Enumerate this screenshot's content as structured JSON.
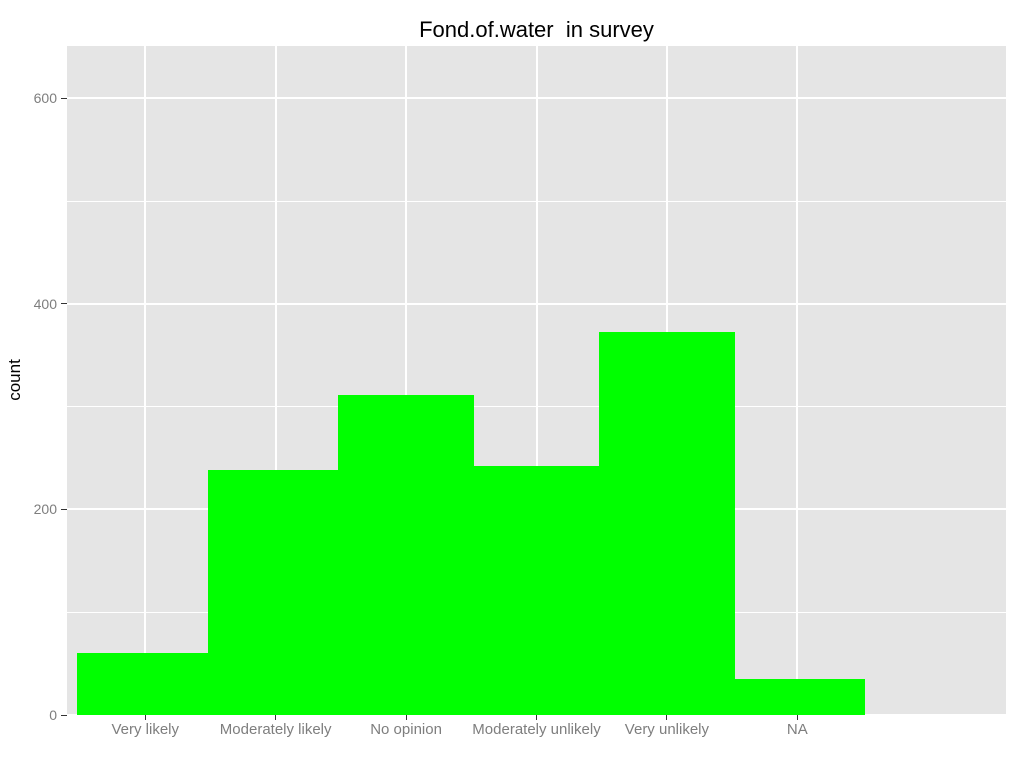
{
  "figure": {
    "title": "Fond.of.water  in survey"
  },
  "chart_data": {
    "type": "bar",
    "title": "Fond.of.water  in survey",
    "categories": [
      "Very likely",
      "Moderately likely",
      "No opinion",
      "Moderately unlikely",
      "Very unlikely",
      "NA"
    ],
    "values": [
      60,
      238,
      311,
      242,
      373,
      35
    ],
    "xlabel": "",
    "ylabel": "count",
    "ylim": [
      0,
      651
    ],
    "y_major_ticks": [
      0,
      200,
      400,
      600
    ],
    "y_minor_gridlines": [
      100,
      300,
      500
    ],
    "grid": "on",
    "legend": "none",
    "style": "ggplot-grey-theme",
    "bar_color": "#00FF00",
    "panel_background": "#E5E5E5",
    "gridline_color": "#FFFFFF",
    "axis_text_color": "#7E7E7E",
    "tick_mark_color": "#333333",
    "title_color": "#000000"
  }
}
